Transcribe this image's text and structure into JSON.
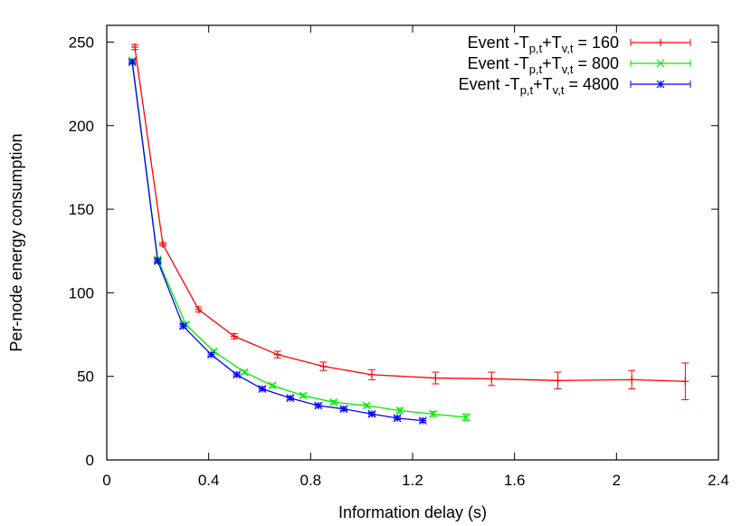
{
  "chart_data": {
    "type": "line",
    "xlabel": "Information delay (s)",
    "ylabel": "Per-node energy consumption",
    "xlim": [
      0,
      2.4
    ],
    "ylim": [
      0,
      260
    ],
    "xticks": [
      0,
      0.4,
      0.8,
      1.2,
      1.6,
      2,
      2.4
    ],
    "xtick_labels": [
      "0",
      "0.4",
      "0.8",
      "1.2",
      "1.6",
      "2",
      "2.4"
    ],
    "yticks": [
      0,
      50,
      100,
      150,
      200,
      250
    ],
    "ytick_labels": [
      "0",
      "50",
      "100",
      "150",
      "200",
      "250"
    ],
    "grid": false,
    "legend_position": "top-right",
    "series": [
      {
        "name_parts": [
          "Event -T",
          "p,t",
          "+T",
          "v,t",
          " = 160"
        ],
        "color": "#ff0000",
        "marker": "plus",
        "x": [
          0.11,
          0.22,
          0.36,
          0.5,
          0.67,
          0.85,
          1.04,
          1.29,
          1.51,
          1.77,
          2.06,
          2.27
        ],
        "y": [
          247,
          129,
          90,
          74,
          63,
          56,
          51,
          49,
          48.5,
          47.5,
          48,
          47
        ],
        "err": [
          1.5,
          1,
          1.5,
          1.5,
          2,
          2.5,
          3,
          3.5,
          4,
          5,
          5.5,
          11
        ]
      },
      {
        "name_parts": [
          "Event -T",
          "p,t",
          "+T",
          "v,t",
          " = 800"
        ],
        "color": "#00ee00",
        "marker": "cross",
        "x": [
          0.1,
          0.2,
          0.31,
          0.42,
          0.54,
          0.65,
          0.77,
          0.89,
          1.02,
          1.15,
          1.28,
          1.41
        ],
        "y": [
          239,
          120,
          81,
          65,
          52.5,
          44.5,
          38.5,
          34.5,
          32.5,
          29.5,
          27.5,
          25.5
        ],
        "err": [
          1,
          1,
          1,
          1,
          1,
          1,
          1,
          1,
          1,
          1.5,
          1.5,
          2
        ]
      },
      {
        "name_parts": [
          "Event -T",
          "p,t",
          "+T",
          "v,t",
          " = 4800"
        ],
        "color": "#0000ff",
        "marker": "star",
        "x": [
          0.1,
          0.2,
          0.3,
          0.41,
          0.51,
          0.61,
          0.72,
          0.83,
          0.93,
          1.04,
          1.14,
          1.24
        ],
        "y": [
          238,
          119,
          80,
          63,
          51,
          42.5,
          37,
          32.5,
          30.5,
          27.5,
          25,
          23.5
        ],
        "err": [
          1,
          1,
          1,
          1,
          1,
          1,
          1,
          1,
          1,
          1,
          1,
          1
        ]
      }
    ]
  }
}
